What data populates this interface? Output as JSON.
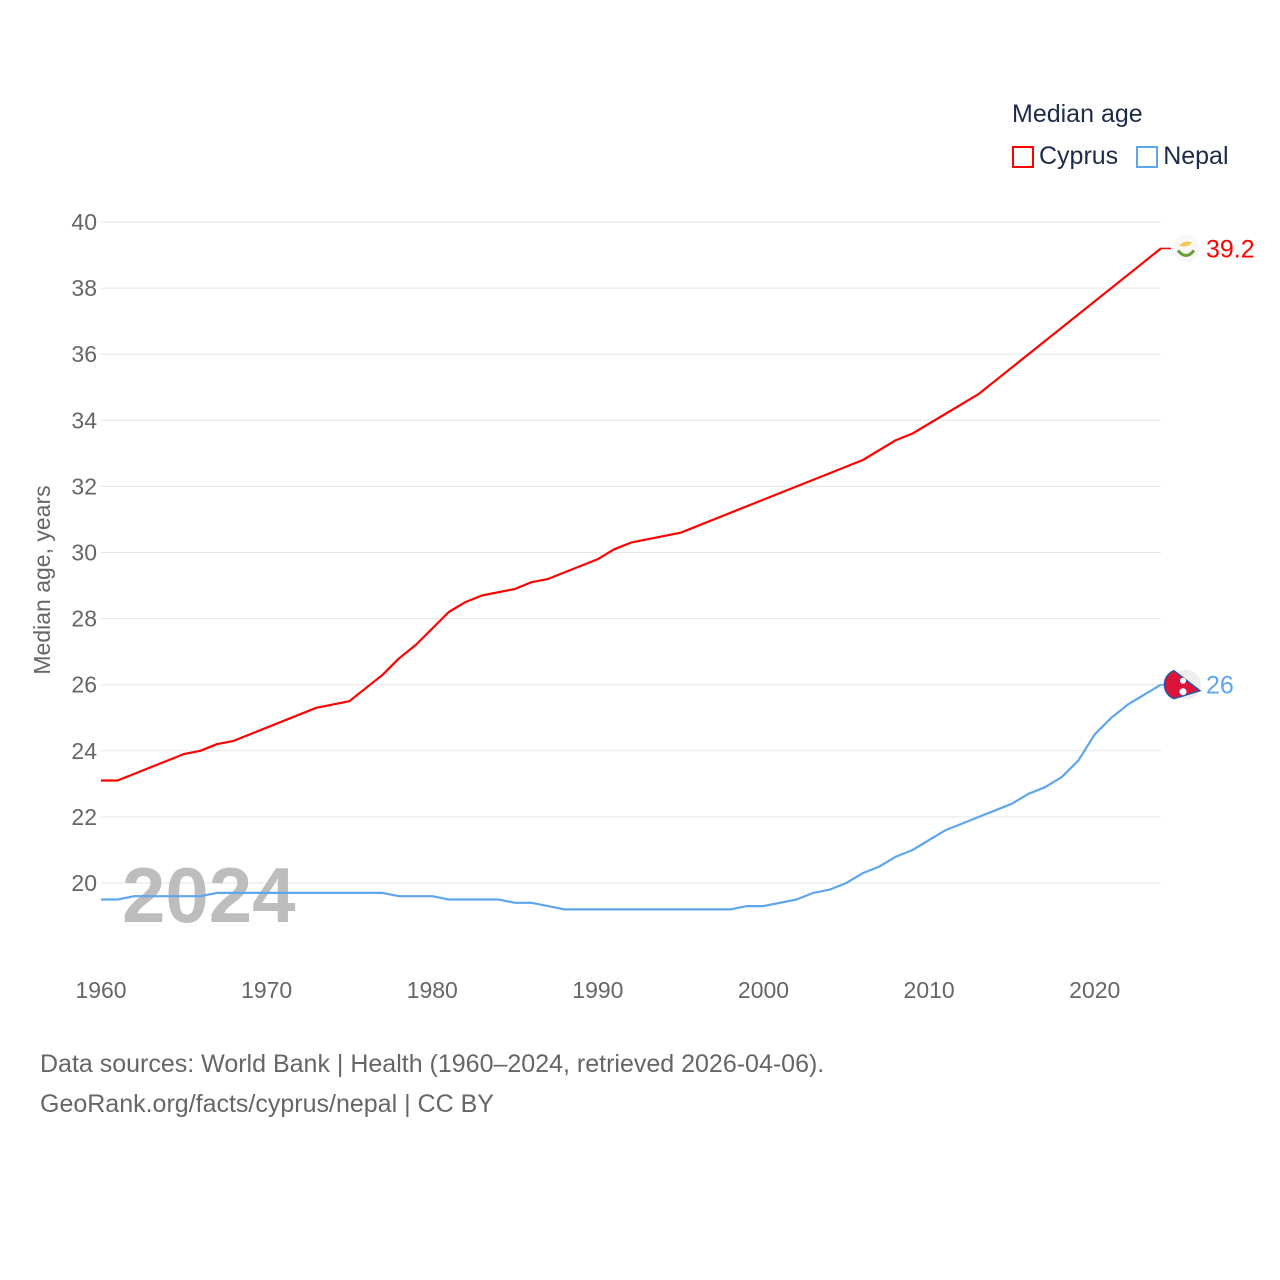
{
  "chart_data": {
    "type": "line",
    "title": "",
    "xlabel": "",
    "ylabel": "Median age, years",
    "xlim": [
      1960,
      2024
    ],
    "ylim": [
      18,
      40
    ],
    "grid": true,
    "x_ticks": [
      1960,
      1970,
      1980,
      1990,
      2000,
      2010,
      2020
    ],
    "y_ticks": [
      20,
      22,
      24,
      26,
      28,
      30,
      32,
      34,
      36,
      38,
      40
    ],
    "legend": {
      "title": "Median age",
      "placement": "top-right"
    },
    "watermark_year": "2024",
    "series": [
      {
        "name": "Cyprus",
        "color": "#ff0000",
        "end_label": "39.2",
        "flag": "cyprus-flag",
        "points": [
          [
            1960,
            23.1
          ],
          [
            1961,
            23.1
          ],
          [
            1965,
            23.9
          ],
          [
            1966,
            24.0
          ],
          [
            1967,
            24.2
          ],
          [
            1968,
            24.3
          ],
          [
            1973,
            25.3
          ],
          [
            1975,
            25.5
          ],
          [
            1977,
            26.3
          ],
          [
            1978,
            26.8
          ],
          [
            1979,
            27.2
          ],
          [
            1980,
            27.7
          ],
          [
            1981,
            28.2
          ],
          [
            1982,
            28.5
          ],
          [
            1983,
            28.7
          ],
          [
            1985,
            28.9
          ],
          [
            1986,
            29.1
          ],
          [
            1987,
            29.2
          ],
          [
            1990,
            29.8
          ],
          [
            1991,
            30.1
          ],
          [
            1992,
            30.3
          ],
          [
            1995,
            30.6
          ],
          [
            2000,
            31.6
          ],
          [
            2006,
            32.8
          ],
          [
            2008,
            33.4
          ],
          [
            2009,
            33.6
          ],
          [
            2013,
            34.8
          ],
          [
            2024,
            39.2
          ]
        ]
      },
      {
        "name": "Nepal",
        "color": "#5ea6ee",
        "end_label": "26",
        "flag": "nepal-flag",
        "points": [
          [
            1960,
            19.5
          ],
          [
            1961,
            19.5
          ],
          [
            1962,
            19.6
          ],
          [
            1966,
            19.6
          ],
          [
            1967,
            19.7
          ],
          [
            1977,
            19.7
          ],
          [
            1978,
            19.6
          ],
          [
            1980,
            19.6
          ],
          [
            1981,
            19.5
          ],
          [
            1984,
            19.5
          ],
          [
            1985,
            19.4
          ],
          [
            1986,
            19.4
          ],
          [
            1988,
            19.2
          ],
          [
            1998,
            19.2
          ],
          [
            1999,
            19.3
          ],
          [
            2000,
            19.3
          ],
          [
            2002,
            19.5
          ],
          [
            2003,
            19.7
          ],
          [
            2004,
            19.8
          ],
          [
            2005,
            20.0
          ],
          [
            2006,
            20.3
          ],
          [
            2007,
            20.5
          ],
          [
            2008,
            20.8
          ],
          [
            2009,
            21.0
          ],
          [
            2010,
            21.3
          ],
          [
            2011,
            21.6
          ],
          [
            2012,
            21.8
          ],
          [
            2013,
            22.0
          ],
          [
            2014,
            22.2
          ],
          [
            2015,
            22.4
          ],
          [
            2016,
            22.7
          ],
          [
            2017,
            22.9
          ],
          [
            2018,
            23.2
          ],
          [
            2019,
            23.7
          ],
          [
            2020,
            24.5
          ],
          [
            2021,
            25.0
          ],
          [
            2022,
            25.4
          ],
          [
            2023,
            25.7
          ],
          [
            2024,
            26.0
          ]
        ]
      }
    ]
  },
  "footer": {
    "line1": "Data sources: World Bank | Health (1960–2024, retrieved 2026-04-06).",
    "line2": "GeoRank.org/facts/cyprus/nepal | CC BY"
  }
}
